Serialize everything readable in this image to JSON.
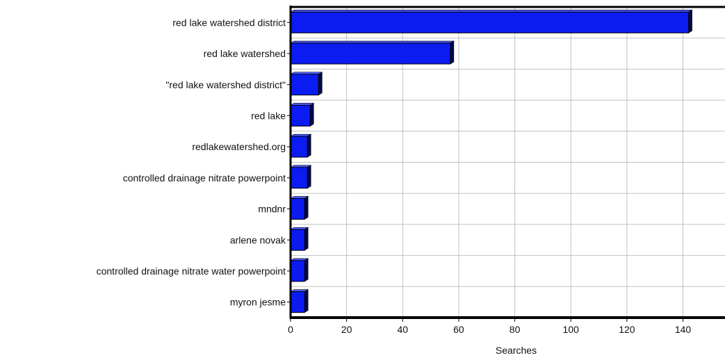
{
  "chart_data": {
    "type": "bar",
    "orientation": "horizontal",
    "categories": [
      "red lake watershed district",
      "red lake watershed",
      "\"red lake watershed district\"",
      "red lake",
      "redlakewatershed.org",
      "controlled drainage nitrate powerpoint",
      "mndnr",
      "arlene novak",
      "controlled drainage nitrate water powerpoint",
      "myron jesme"
    ],
    "values": [
      142,
      57,
      10,
      7,
      6,
      6,
      5,
      5,
      5,
      5
    ],
    "x_ticks": [
      "0",
      "20",
      "40",
      "60",
      "80",
      "100",
      "120",
      "140"
    ],
    "xlim": [
      0,
      155
    ],
    "xlabel": "Searches",
    "ylabel": "",
    "title": "",
    "grid": true,
    "legend": "none",
    "colors": {
      "bar": "#0a1cf0",
      "bar_side": "#00074d",
      "bar_top": "#4d5cff",
      "grid": "#c0c0c0",
      "axis": "#000000"
    }
  }
}
